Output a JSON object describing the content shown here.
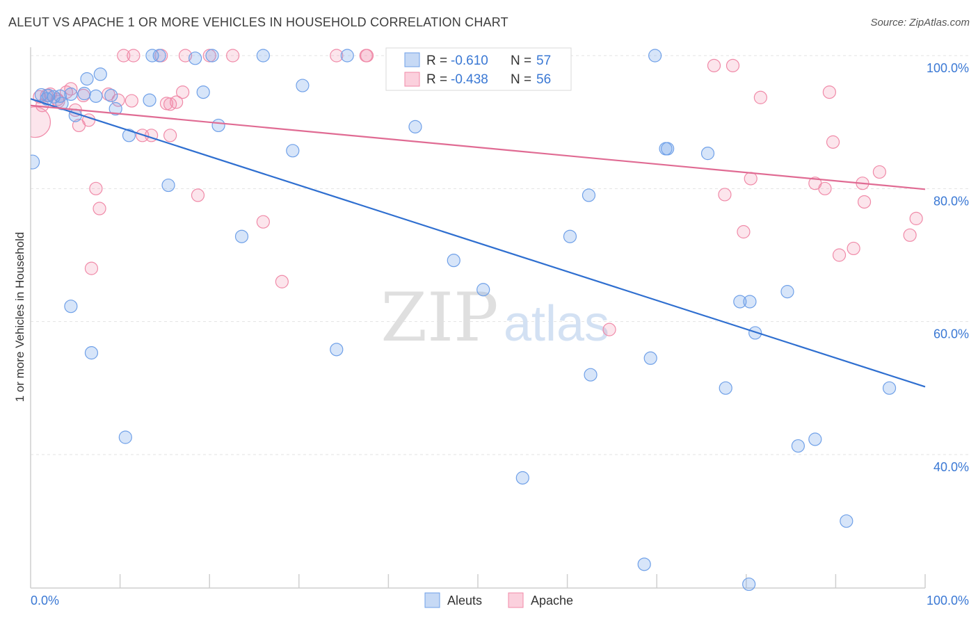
{
  "header": {
    "title": "ALEUT VS APACHE 1 OR MORE VEHICLES IN HOUSEHOLD CORRELATION CHART",
    "source": "Source: ZipAtlas.com"
  },
  "watermark": {
    "zip": "ZIP",
    "atlas": "atlas"
  },
  "stats_legend": [
    {
      "r_label": "R =",
      "r_value": "-0.610",
      "n_label": "N =",
      "n_value": "57",
      "color": "#6fa0e8"
    },
    {
      "r_label": "R =",
      "r_value": "-0.438",
      "n_label": "N =",
      "n_value": "56",
      "color": "#f08aa8"
    }
  ],
  "chart_data": {
    "type": "scatter",
    "title": "ALEUT VS APACHE 1 OR MORE VEHICLES IN HOUSEHOLD CORRELATION CHART",
    "xlabel": "",
    "ylabel": "1 or more Vehicles in Household",
    "xlim": [
      0,
      100
    ],
    "ylim": [
      20,
      103
    ],
    "x_tick_labels": [
      "0.0%",
      "100.0%"
    ],
    "y_ticks": [
      40,
      60,
      80,
      100
    ],
    "y_tick_labels": [
      "40.0%",
      "60.0%",
      "80.0%",
      "100.0%"
    ],
    "grid": true,
    "legend_position": "bottom-center",
    "series": [
      {
        "name": "Aleuts",
        "color": "#6fa0e8",
        "trend": {
          "x": [
            0,
            100
          ],
          "y": [
            93.5,
            50.2
          ]
        },
        "points": [
          [
            0.2,
            84.0
          ],
          [
            1.8,
            93.5
          ],
          [
            2.6,
            93.8
          ],
          [
            3.5,
            92.8
          ],
          [
            3.3,
            93.9
          ],
          [
            4.5,
            94.2
          ],
          [
            5.0,
            91.0
          ],
          [
            6.0,
            94.3
          ],
          [
            6.3,
            96.5
          ],
          [
            7.3,
            93.9
          ],
          [
            7.8,
            97.2
          ],
          [
            9.0,
            94.0
          ],
          [
            9.5,
            92.0
          ],
          [
            11.0,
            88.0
          ],
          [
            13.3,
            93.3
          ],
          [
            13.6,
            100.0
          ],
          [
            14.4,
            100.0
          ],
          [
            15.4,
            80.5
          ],
          [
            18.4,
            99.6
          ],
          [
            19.3,
            94.5
          ],
          [
            20.3,
            100.0
          ],
          [
            21.0,
            89.5
          ],
          [
            23.6,
            72.8
          ],
          [
            29.3,
            85.7
          ],
          [
            30.4,
            95.5
          ],
          [
            34.2,
            55.8
          ],
          [
            35.4,
            100.0
          ],
          [
            43.0,
            89.3
          ],
          [
            47.3,
            69.2
          ],
          [
            50.6,
            64.8
          ],
          [
            55.0,
            36.5
          ],
          [
            56.5,
            100.0
          ],
          [
            60.3,
            72.8
          ],
          [
            62.4,
            79.0
          ],
          [
            62.6,
            52.0
          ],
          [
            68.6,
            23.5
          ],
          [
            69.3,
            54.5
          ],
          [
            69.8,
            100.0
          ],
          [
            71.0,
            86.0
          ],
          [
            71.2,
            86.0
          ],
          [
            75.7,
            85.3
          ],
          [
            77.7,
            50.0
          ],
          [
            79.3,
            63.0
          ],
          [
            80.3,
            20.5
          ],
          [
            80.4,
            63.0
          ],
          [
            81.0,
            58.3
          ],
          [
            84.6,
            64.5
          ],
          [
            85.8,
            41.3
          ],
          [
            87.7,
            42.3
          ],
          [
            91.2,
            30.0
          ],
          [
            96.0,
            50.0
          ],
          [
            4.5,
            62.3
          ],
          [
            6.8,
            55.3
          ],
          [
            10.6,
            42.6
          ],
          [
            1.2,
            94.1
          ],
          [
            2.0,
            94.0
          ],
          [
            26.0,
            100.0
          ]
        ]
      },
      {
        "name": "Apache",
        "color": "#f08aa8",
        "trend": {
          "x": [
            0,
            100
          ],
          "y": [
            92.5,
            79.9
          ]
        },
        "points": [
          [
            0.5,
            90.0
          ],
          [
            1.0,
            93.8
          ],
          [
            1.3,
            92.5
          ],
          [
            2.2,
            94.2
          ],
          [
            3.0,
            93.4
          ],
          [
            4.0,
            94.5
          ],
          [
            4.5,
            95.0
          ],
          [
            5.0,
            91.8
          ],
          [
            5.4,
            89.5
          ],
          [
            6.5,
            90.3
          ],
          [
            7.3,
            80.0
          ],
          [
            7.7,
            77.0
          ],
          [
            6.8,
            68.0
          ],
          [
            9.8,
            93.3
          ],
          [
            10.4,
            100.0
          ],
          [
            11.3,
            93.2
          ],
          [
            11.5,
            100.0
          ],
          [
            12.5,
            88.0
          ],
          [
            13.5,
            88.0
          ],
          [
            14.6,
            100.0
          ],
          [
            15.2,
            92.8
          ],
          [
            15.6,
            92.7
          ],
          [
            15.6,
            88.0
          ],
          [
            16.3,
            93.0
          ],
          [
            17.0,
            94.5
          ],
          [
            17.3,
            100.0
          ],
          [
            18.7,
            79.0
          ],
          [
            20.0,
            100.0
          ],
          [
            22.6,
            100.0
          ],
          [
            26.0,
            75.0
          ],
          [
            28.1,
            66.0
          ],
          [
            34.2,
            100.0
          ],
          [
            37.5,
            100.0
          ],
          [
            37.6,
            100.0
          ],
          [
            64.7,
            58.8
          ],
          [
            76.4,
            98.5
          ],
          [
            77.6,
            79.1
          ],
          [
            78.5,
            98.5
          ],
          [
            79.7,
            73.5
          ],
          [
            80.5,
            81.5
          ],
          [
            81.6,
            93.7
          ],
          [
            89.3,
            94.5
          ],
          [
            89.7,
            87.0
          ],
          [
            87.7,
            80.8
          ],
          [
            88.8,
            80.0
          ],
          [
            90.4,
            70.0
          ],
          [
            92.0,
            71.0
          ],
          [
            93.0,
            80.8
          ],
          [
            93.2,
            78.0
          ],
          [
            94.9,
            82.5
          ],
          [
            98.3,
            73.0
          ],
          [
            99.0,
            75.5
          ],
          [
            1.8,
            94.0
          ],
          [
            3.1,
            93.1
          ],
          [
            5.9,
            94.0
          ],
          [
            8.7,
            94.2
          ]
        ]
      }
    ]
  }
}
